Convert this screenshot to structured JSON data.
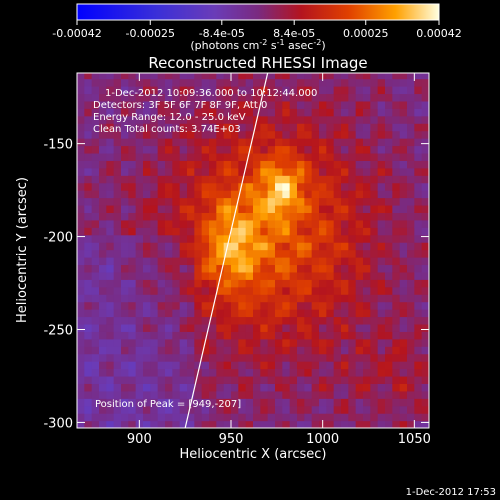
{
  "chart_data": {
    "type": "heatmap",
    "title": "Reconstructed RHESSI Image",
    "xlabel": "Heliocentric X (arcsec)",
    "ylabel": "Heliocentric Y (arcsec)",
    "xlim": [
      866,
      1058
    ],
    "ylim": [
      -303,
      -112
    ],
    "xticks": [
      900,
      950,
      1000,
      1050
    ],
    "yticks": [
      -150,
      -200,
      -250,
      -300
    ],
    "colorbar": {
      "ticks": [
        "-0.00042",
        "-0.00025",
        "-8.4e-05",
        "8.4e-05",
        "0.00025",
        "0.00042"
      ],
      "values": [
        -0.00042,
        -0.00025,
        -8.4e-05,
        8.4e-05,
        0.00025,
        0.00042
      ],
      "range": [
        -0.00042,
        0.00042
      ],
      "units": "(photons cm",
      "units_exp1": "-2",
      "units_mid": " s",
      "units_exp2": "-1",
      "units_end": " asec",
      "units_exp3": "-2",
      "units_close": ")"
    },
    "annotations": {
      "time": "1-Dec-2012 10:09:36.000  to 10:12:44.000",
      "detectors": "Detectors: 3F 5F 6F 7F 8F 9F, Att 0",
      "energy": "Energy Range: 12.0 - 25.0 keV",
      "clean": "Clean     Total counts: 3.74E+03",
      "peak": "Position of Peak = [949,-207]"
    },
    "peak": {
      "x": 949,
      "y": -207
    },
    "emission_center": {
      "x": 968,
      "y": -200
    },
    "limb_line": [
      {
        "x": 925,
        "y": -303
      },
      {
        "x": 970,
        "y": -112
      }
    ],
    "footer_timestamp": "1-Dec-2012 17:53",
    "colors": {
      "background": "#000000",
      "line": "#ffffff"
    }
  }
}
